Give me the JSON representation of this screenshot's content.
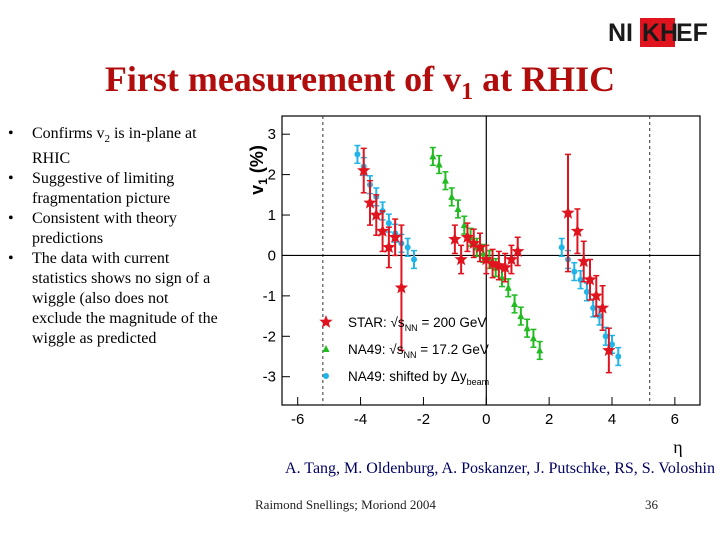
{
  "logo": {
    "text": "NIKHEF",
    "left": "NI",
    "box": "KH",
    "right": "EF",
    "icon": "nikhef-logo"
  },
  "slide": {
    "title_main": "First measurement of v",
    "title_sub": "1",
    "title_tail": " at RHIC",
    "bullets": [
      {
        "pre": "Confirms v",
        "sub": "2",
        "post": " is in-plane at RHIC"
      },
      {
        "pre": "Suggestive of limiting fragmentation picture",
        "sub": "",
        "post": ""
      },
      {
        "pre": "Consistent with theory predictions",
        "sub": "",
        "post": ""
      },
      {
        "pre": "The data with current statistics shows no sign of a wiggle (also does not exclude the magnitude of the wiggle as predicted",
        "sub": "",
        "post": ""
      }
    ],
    "authors": "A. Tang, M. Oldenburg, A. Poskanzer, J. Putschke, RS, S. Voloshin",
    "footer": "Raimond Snellings; Moriond 2004",
    "page_number": "36"
  },
  "chart_data": {
    "type": "scatter",
    "xlabel": "η",
    "ylabel_main": "v",
    "ylabel_sub": "1",
    "ylabel_unit": "(%)",
    "xlim": [
      -6.5,
      6.8
    ],
    "ylim": [
      -3.7,
      3.45
    ],
    "xticks": [
      -6,
      -4,
      -2,
      0,
      2,
      4,
      6
    ],
    "yticks": [
      -3,
      -2,
      -1,
      0,
      1,
      2,
      3
    ],
    "dashed_x": [
      -5.2,
      5.2
    ],
    "colors": {
      "star": "#e0141e",
      "na49": "#22bb22",
      "shifted": "#20b4e8",
      "errbar": "#e0141e"
    },
    "series": [
      {
        "name": "STAR",
        "legend": [
          "STAR: ",
          "√s",
          "NN",
          " = 200 GeV"
        ],
        "marker": "star",
        "color": "#e0141e",
        "points": [
          {
            "x": -3.9,
            "y": 2.1,
            "e": 0.55
          },
          {
            "x": -3.7,
            "y": 1.3,
            "e": 0.55
          },
          {
            "x": -3.5,
            "y": 1.0,
            "e": 0.5
          },
          {
            "x": -3.3,
            "y": 0.6,
            "e": 0.5
          },
          {
            "x": -3.1,
            "y": 0.2,
            "e": 0.5
          },
          {
            "x": -2.9,
            "y": 0.45,
            "e": 0.45
          },
          {
            "x": -2.7,
            "y": -0.8,
            "e": 1.55
          },
          {
            "x": -1.0,
            "y": 0.4,
            "e": 0.35
          },
          {
            "x": -0.8,
            "y": -0.1,
            "e": 0.35
          },
          {
            "x": -0.6,
            "y": 0.45,
            "e": 0.35
          },
          {
            "x": -0.4,
            "y": 0.3,
            "e": 0.35
          },
          {
            "x": -0.2,
            "y": 0.2,
            "e": 0.35
          },
          {
            "x": 0.0,
            "y": -0.1,
            "e": 0.35
          },
          {
            "x": 0.2,
            "y": -0.2,
            "e": 0.35
          },
          {
            "x": 0.4,
            "y": -0.25,
            "e": 0.35
          },
          {
            "x": 0.6,
            "y": -0.3,
            "e": 0.35
          },
          {
            "x": 0.8,
            "y": -0.1,
            "e": 0.35
          },
          {
            "x": 1.0,
            "y": 0.1,
            "e": 0.35
          },
          {
            "x": 2.6,
            "y": 1.05,
            "e": 1.45
          },
          {
            "x": 2.9,
            "y": 0.6,
            "e": 0.55
          },
          {
            "x": 3.1,
            "y": -0.15,
            "e": 0.5
          },
          {
            "x": 3.3,
            "y": -0.6,
            "e": 0.5
          },
          {
            "x": 3.5,
            "y": -1.0,
            "e": 0.5
          },
          {
            "x": 3.7,
            "y": -1.3,
            "e": 0.55
          },
          {
            "x": 3.9,
            "y": -2.35,
            "e": 0.55
          }
        ]
      },
      {
        "name": "NA49",
        "legend": [
          "NA49: ",
          "√s",
          "NN",
          " = 17.2 GeV"
        ],
        "marker": "triangle",
        "color": "#22bb22",
        "points": [
          {
            "x": -1.7,
            "y": 2.45
          },
          {
            "x": -1.5,
            "y": 2.25
          },
          {
            "x": -1.3,
            "y": 1.85
          },
          {
            "x": -1.1,
            "y": 1.45
          },
          {
            "x": -0.9,
            "y": 1.15
          },
          {
            "x": -0.7,
            "y": 0.75
          },
          {
            "x": -0.5,
            "y": 0.45
          },
          {
            "x": -0.3,
            "y": 0.2
          },
          {
            "x": -0.1,
            "y": 0.05
          },
          {
            "x": 0.1,
            "y": -0.1
          },
          {
            "x": 0.3,
            "y": -0.3
          },
          {
            "x": 0.5,
            "y": -0.55
          },
          {
            "x": 0.7,
            "y": -0.8
          },
          {
            "x": 0.9,
            "y": -1.2
          },
          {
            "x": 1.1,
            "y": -1.5
          },
          {
            "x": 1.3,
            "y": -1.8
          },
          {
            "x": 1.5,
            "y": -2.05
          },
          {
            "x": 1.7,
            "y": -2.35
          }
        ]
      },
      {
        "name": "NA49 shifted",
        "legend": [
          "NA49: shifted by ",
          "Δy",
          "beam",
          ""
        ],
        "marker": "circle",
        "color": "#20b4e8",
        "points": [
          {
            "x": -4.1,
            "y": 2.5
          },
          {
            "x": -3.9,
            "y": 2.2
          },
          {
            "x": -3.7,
            "y": 1.75
          },
          {
            "x": -3.5,
            "y": 1.45
          },
          {
            "x": -3.3,
            "y": 1.1
          },
          {
            "x": -3.1,
            "y": 0.8
          },
          {
            "x": -2.9,
            "y": 0.55
          },
          {
            "x": -2.7,
            "y": 0.3
          },
          {
            "x": -2.5,
            "y": 0.2
          },
          {
            "x": -2.3,
            "y": -0.1
          },
          {
            "x": 2.4,
            "y": 0.2
          },
          {
            "x": 2.6,
            "y": -0.1
          },
          {
            "x": 2.8,
            "y": -0.4
          },
          {
            "x": 3.0,
            "y": -0.6
          },
          {
            "x": 3.2,
            "y": -0.9
          },
          {
            "x": 3.4,
            "y": -1.3
          },
          {
            "x": 3.6,
            "y": -1.5
          },
          {
            "x": 3.8,
            "y": -2.0
          },
          {
            "x": 4.0,
            "y": -2.2
          },
          {
            "x": 4.2,
            "y": -2.5
          }
        ]
      }
    ]
  }
}
